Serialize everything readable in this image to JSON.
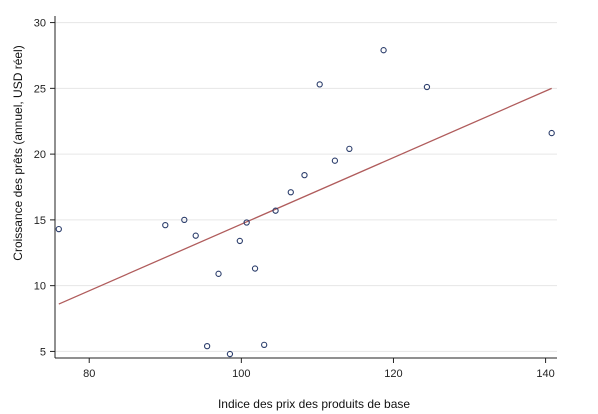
{
  "chart_data": {
    "type": "scatter",
    "title": "",
    "xlabel": "Indice des prix des produits de base",
    "ylabel": "Croissance des prêts (annuel, USD réel)",
    "xlim": [
      75.5,
      141.5
    ],
    "ylim": [
      4.5,
      30.5
    ],
    "xticks": [
      "80",
      "100",
      "120",
      "140"
    ],
    "yticks": [
      "5",
      "10",
      "15",
      "20",
      "25",
      "30"
    ],
    "grid": true,
    "legend": "none",
    "colors": {
      "points": "#2b3d6b",
      "fit_line": "#b05c5c",
      "grid": "#e6e6e6",
      "axis": "#222222"
    },
    "points": [
      {
        "x": 76.0,
        "y": 14.3
      },
      {
        "x": 90.0,
        "y": 14.6
      },
      {
        "x": 92.5,
        "y": 15.0
      },
      {
        "x": 94.0,
        "y": 13.8
      },
      {
        "x": 95.5,
        "y": 5.4
      },
      {
        "x": 97.0,
        "y": 10.9
      },
      {
        "x": 98.5,
        "y": 4.8
      },
      {
        "x": 99.8,
        "y": 13.4
      },
      {
        "x": 100.7,
        "y": 14.8
      },
      {
        "x": 101.8,
        "y": 11.3
      },
      {
        "x": 103.0,
        "y": 5.5
      },
      {
        "x": 104.5,
        "y": 15.7
      },
      {
        "x": 106.5,
        "y": 17.1
      },
      {
        "x": 108.3,
        "y": 18.4
      },
      {
        "x": 110.3,
        "y": 25.3
      },
      {
        "x": 112.3,
        "y": 19.5
      },
      {
        "x": 114.2,
        "y": 20.4
      },
      {
        "x": 118.7,
        "y": 27.9
      },
      {
        "x": 124.4,
        "y": 25.1
      },
      {
        "x": 140.8,
        "y": 21.6
      }
    ],
    "fit_line": {
      "x": [
        76.0,
        140.8
      ],
      "y": [
        8.6,
        25.0
      ]
    }
  }
}
